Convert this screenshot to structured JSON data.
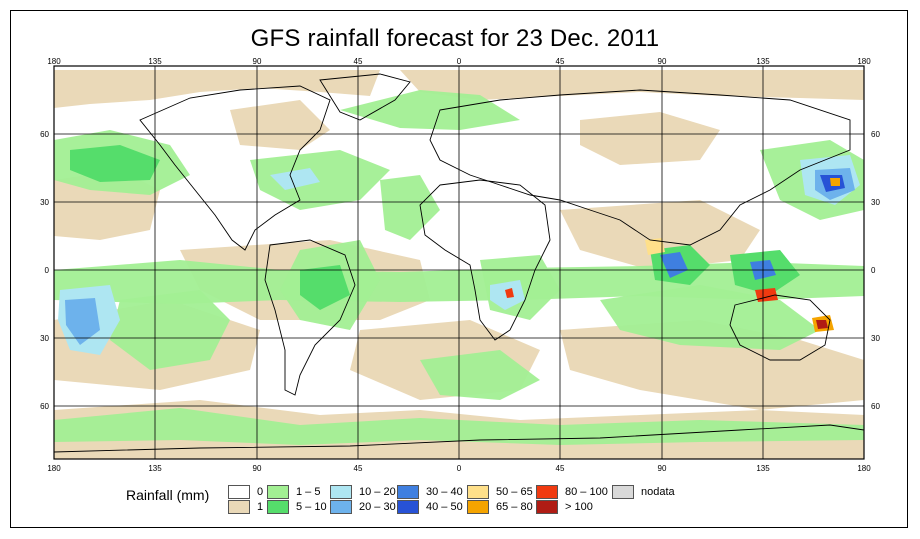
{
  "title": "GFS rainfall forecast for 23 Dec. 2011",
  "axes": {
    "top_ticks": [
      "180",
      "135",
      "90",
      "45",
      "0",
      "45",
      "90",
      "135",
      "180"
    ],
    "bottom_ticks": [
      "180",
      "135",
      "90",
      "45",
      "0",
      "45",
      "90",
      "135",
      "180"
    ],
    "left_ticks": [
      "60",
      "30",
      "0",
      "30",
      "60"
    ],
    "right_ticks": [
      "60",
      "30",
      "0",
      "30",
      "60"
    ]
  },
  "legend": {
    "title": "Rainfall (mm)",
    "items": [
      {
        "label": "0",
        "color": "#ffffff"
      },
      {
        "label": "1",
        "color": "#ead9b8"
      },
      {
        "label": "1 – 5",
        "color": "#a2ef93"
      },
      {
        "label": "5 – 10",
        "color": "#55dd6b"
      },
      {
        "label": "10 – 20",
        "color": "#aee6f2"
      },
      {
        "label": "20 – 30",
        "color": "#6db2ec"
      },
      {
        "label": "30 – 40",
        "color": "#3f7fe0"
      },
      {
        "label": "40 – 50",
        "color": "#2752d6"
      },
      {
        "label": "50 – 65",
        "color": "#ffe08a"
      },
      {
        "label": "65 – 80",
        "color": "#f5a400"
      },
      {
        "label": "80 – 100",
        "color": "#f03a10"
      },
      {
        "label": "> 100",
        "color": "#b01c14"
      },
      {
        "label": "nodata",
        "color": "#d9d9d9"
      }
    ]
  },
  "colors": {
    "land_outline": "#000000",
    "grid": "#000000",
    "ocean_background": "#ffffff"
  }
}
